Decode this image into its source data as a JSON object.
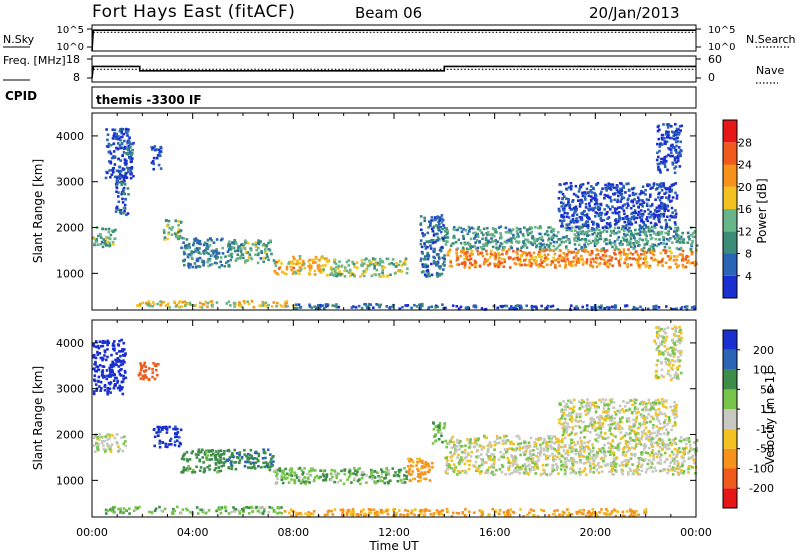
{
  "header": {
    "station": "Fort Hays East (fitACF)",
    "beam": "Beam 06",
    "date": "20/Jan/2013"
  },
  "colors": {
    "power_scale": [
      "#1a2fd0",
      "#2a64b4",
      "#3d8c7a",
      "#69b58a",
      "#f2c21f",
      "#f7921c",
      "#f05a1c",
      "#e61717"
    ],
    "velocity_scale": [
      "#e61717",
      "#f05a1c",
      "#f7921c",
      "#f2c21f",
      "#c8c8c2",
      "#77c64a",
      "#3d8c4a",
      "#2a64b4",
      "#1a2fd0"
    ]
  },
  "chart_data": [
    {
      "type": "line",
      "panel": "noise",
      "ylabel_left": "N.Sky",
      "ylabel_right": "N.Search",
      "left_ticks": [
        "10^5",
        "10^0"
      ],
      "right_ticks": [
        "10^5",
        "10^0"
      ],
      "x_ticks": [
        "00:00",
        "04:00",
        "08:00",
        "12:00",
        "16:00",
        "20:00",
        "00:00"
      ],
      "series": [
        {
          "style": "solid",
          "x": [
            0,
            0.05,
            24
          ],
          "y": [
            0,
            0.8,
            0.8
          ]
        },
        {
          "style": "dotted",
          "x": [
            0.05,
            24
          ],
          "y": [
            0.72,
            0.72
          ]
        }
      ]
    },
    {
      "type": "line",
      "panel": "frequency",
      "ylabel_left": "Freq. [MHz]",
      "ylabel_right": "Nave",
      "left_ticks": [
        "18",
        "8"
      ],
      "right_ticks": [
        "60",
        "0"
      ],
      "series": [
        {
          "style": "solid",
          "x": [
            0,
            0.05,
            1.9,
            1.9,
            14.0,
            14.0,
            24
          ],
          "y": [
            8,
            14.1,
            14.1,
            11.8,
            11.8,
            14.1,
            14.1
          ]
        },
        {
          "style": "dotted",
          "x": [
            0.05,
            24
          ],
          "y": [
            12.6,
            12.6
          ]
        }
      ]
    },
    {
      "type": "table",
      "panel": "cpid",
      "label": "CPID",
      "text": "themis -3300 IF"
    },
    {
      "type": "heatmap",
      "panel": "power",
      "quantity": "Power",
      "unit": "dB",
      "ylabel": "Slant Range [km]",
      "xlim": [
        0,
        24
      ],
      "ylim": [
        200,
        4500
      ],
      "y_ticks": [
        1000,
        2000,
        3000,
        4000
      ],
      "x_ticks": [
        "00:00",
        "04:00",
        "08:00",
        "12:00",
        "16:00",
        "20:00",
        "00:00"
      ],
      "colorbar_ticks": [
        28,
        24,
        20,
        16,
        12,
        8,
        4
      ],
      "regions": [
        {
          "t0": 0.0,
          "t1": 0.9,
          "r0": 1600,
          "r1": 2050,
          "p": 14
        },
        {
          "t0": 0.5,
          "t1": 1.6,
          "r0": 3100,
          "r1": 4200,
          "p": 6
        },
        {
          "t0": 0.9,
          "t1": 1.4,
          "r0": 2300,
          "r1": 3300,
          "p": 7
        },
        {
          "t0": 1.3,
          "t1": 1.6,
          "r0": 3600,
          "r1": 3900,
          "p": 13
        },
        {
          "t0": 2.3,
          "t1": 2.7,
          "r0": 3300,
          "r1": 3800,
          "p": 6
        },
        {
          "t0": 2.8,
          "t1": 3.5,
          "r0": 1750,
          "r1": 2200,
          "p": 15
        },
        {
          "t0": 3.5,
          "t1": 5.6,
          "r0": 1150,
          "r1": 1800,
          "p": 11
        },
        {
          "t0": 5.6,
          "t1": 7.2,
          "r0": 1250,
          "r1": 1750,
          "p": 14
        },
        {
          "t0": 7.2,
          "t1": 9.3,
          "r0": 1000,
          "r1": 1400,
          "p": 22
        },
        {
          "t0": 9.3,
          "t1": 12.5,
          "r0": 950,
          "r1": 1350,
          "p": 17
        },
        {
          "t0": 13.0,
          "t1": 14.0,
          "r0": 950,
          "r1": 2300,
          "p": 9
        },
        {
          "t0": 14.0,
          "t1": 24.0,
          "r0": 1150,
          "r1": 1550,
          "p": 25
        },
        {
          "t0": 14.0,
          "t1": 24.0,
          "r0": 1550,
          "r1": 2050,
          "p": 13
        },
        {
          "t0": 1.7,
          "t1": 8.0,
          "r0": 280,
          "r1": 420,
          "p": 20
        },
        {
          "t0": 8.0,
          "t1": 14.0,
          "r0": 250,
          "r1": 360,
          "p": 8
        },
        {
          "t0": 14.0,
          "t1": 24.0,
          "r0": 230,
          "r1": 330,
          "p": 6
        },
        {
          "t0": 18.5,
          "t1": 23.2,
          "r0": 2000,
          "r1": 3000,
          "p": 5
        },
        {
          "t0": 22.4,
          "t1": 23.4,
          "r0": 3200,
          "r1": 4300,
          "p": 5
        }
      ]
    },
    {
      "type": "heatmap",
      "panel": "velocity",
      "quantity": "Velocity",
      "unit": "m s-1",
      "ylabel": "Slant Range [km]",
      "xlabel": "Time UT",
      "xlim": [
        0,
        24
      ],
      "ylim": [
        200,
        4500
      ],
      "y_ticks": [
        1000,
        2000,
        3000,
        4000
      ],
      "x_ticks": [
        "00:00",
        "04:00",
        "08:00",
        "12:00",
        "16:00",
        "20:00",
        "00:00"
      ],
      "colorbar_ticks": [
        "200",
        "100",
        "50",
        "15",
        "-15",
        "-50",
        "-100",
        "-200"
      ],
      "regions": [
        {
          "t0": 0.0,
          "t1": 1.3,
          "r0": 1650,
          "r1": 2050,
          "v": 0
        },
        {
          "t0": 0.0,
          "t1": 1.3,
          "r0": 2900,
          "r1": 4100,
          "v": 230
        },
        {
          "t0": 1.8,
          "t1": 2.6,
          "r0": 3200,
          "r1": 3600,
          "v": -160
        },
        {
          "t0": 2.4,
          "t1": 3.5,
          "r0": 1750,
          "r1": 2200,
          "v": 220
        },
        {
          "t0": 3.5,
          "t1": 5.3,
          "r0": 1200,
          "r1": 1700,
          "v": 70
        },
        {
          "t0": 5.3,
          "t1": 7.2,
          "r0": 1250,
          "r1": 1700,
          "v": 90
        },
        {
          "t0": 7.2,
          "t1": 12.5,
          "r0": 950,
          "r1": 1300,
          "v": 40
        },
        {
          "t0": 12.5,
          "t1": 13.5,
          "r0": 1000,
          "r1": 1500,
          "v": -70
        },
        {
          "t0": 13.5,
          "t1": 14.0,
          "r0": 1800,
          "r1": 2300,
          "v": 40
        },
        {
          "t0": 14.0,
          "t1": 24.0,
          "r0": 1150,
          "r1": 2000,
          "v": 0
        },
        {
          "t0": 0.5,
          "t1": 7.5,
          "r0": 300,
          "r1": 450,
          "v": 35
        },
        {
          "t0": 7.5,
          "t1": 22.0,
          "r0": 240,
          "r1": 400,
          "v": -60
        },
        {
          "t0": 22.3,
          "t1": 23.4,
          "r0": 3200,
          "r1": 4400,
          "v": 0
        },
        {
          "t0": 18.5,
          "t1": 23.2,
          "r0": 2000,
          "r1": 2800,
          "v": 0
        }
      ]
    }
  ]
}
